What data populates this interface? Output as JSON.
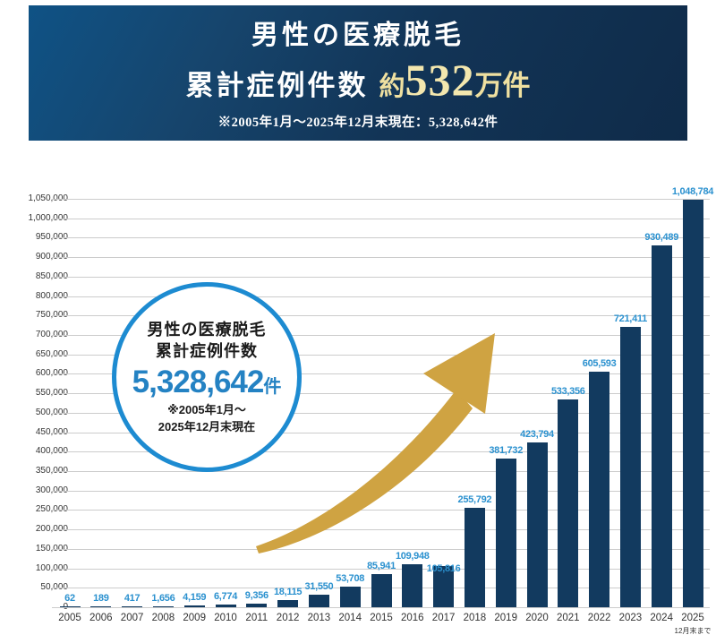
{
  "banner": {
    "title_line1": "男性の医療脱毛",
    "title_line2_prefix": "累計症例件数",
    "title_line2_approx": "約",
    "title_line2_number": "532",
    "title_line2_suffix": "万件",
    "subtitle": "※2005年1月～2025年12月末現在：5,328,642件",
    "gold_color": "#efe0a0",
    "bg_color_start": "#0f5285",
    "bg_color_end": "#0f2b49"
  },
  "annotation": {
    "line1": "男性の医療脱毛",
    "line2": "累計症例件数",
    "number": "5,328,642",
    "unit": "件",
    "note_line1": "※2005年1月～",
    "note_line2": "2025年12月末現在",
    "border_color": "#1d8bd1",
    "number_color": "#2482c3"
  },
  "chart_data": {
    "type": "bar",
    "title": "男性の医療脱毛 累計症例件数",
    "xlabel": "",
    "ylabel": "",
    "categories": [
      "2005",
      "2006",
      "2007",
      "2008",
      "2009",
      "2010",
      "2011",
      "2012",
      "2013",
      "2014",
      "2015",
      "2016",
      "2017",
      "2018",
      "2019",
      "2020",
      "2021",
      "2022",
      "2023",
      "2024",
      "2025"
    ],
    "values": [
      62,
      189,
      417,
      1656,
      4159,
      6774,
      9356,
      18115,
      31550,
      53708,
      85941,
      109948,
      105816,
      255792,
      381732,
      423794,
      533356,
      605593,
      721411,
      930489,
      1048784
    ],
    "value_labels": [
      "62",
      "189",
      "417",
      "1,656",
      "4,159",
      "6,774",
      "9,356",
      "18,115",
      "31,550",
      "53,708",
      "85,941",
      "109,948",
      "105,816",
      "255,792",
      "381,732",
      "423,794",
      "533,356",
      "605,593",
      "721,411",
      "930,489",
      "1,048,784"
    ],
    "label_dy": [
      0,
      0,
      0,
      0,
      0,
      0,
      0,
      0,
      0,
      0,
      0,
      0,
      12,
      0,
      0,
      0,
      0,
      0,
      0,
      0,
      0
    ],
    "ylim": [
      0,
      1050000
    ],
    "y_tick_step": 50000,
    "y_tick_labels": [
      "0",
      "50,000",
      "100,000",
      "150,000",
      "200,000",
      "250,000",
      "300,000",
      "350,000",
      "400,000",
      "450,000",
      "500,000",
      "550,000",
      "600,000",
      "650,000",
      "700,000",
      "750,000",
      "800,000",
      "850,000",
      "900,000",
      "950,000",
      "1,000,000",
      "1,050,000"
    ],
    "grid": true,
    "legend": null,
    "x_note": {
      "year": "2025",
      "text": "12月末まで"
    },
    "bar_color": "#123a5f",
    "value_label_color": "#2b91cf",
    "gridline_color": "#cccccc",
    "arrow_color": "#cfa342"
  }
}
